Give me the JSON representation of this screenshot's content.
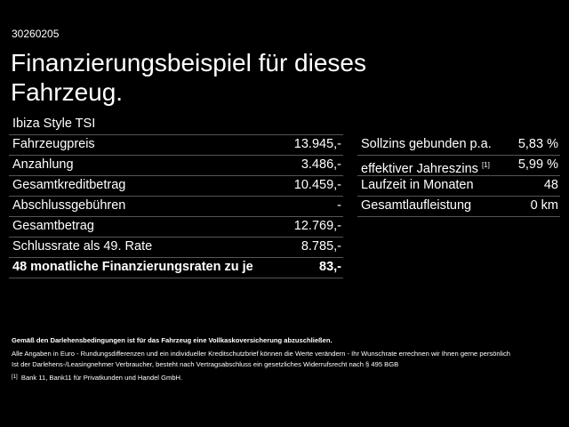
{
  "header": {
    "code": "30260205",
    "title_lines": [
      "Finanzierungsbeispiel für dieses",
      "Fahrzeug."
    ],
    "model": "Ibiza Style TSI"
  },
  "left_table": {
    "rows": [
      [
        "Fahrzeugpreis",
        "13.945,-"
      ],
      [
        "Anzahlung",
        "3.486,-"
      ],
      [
        "Gesamtkreditbetrag",
        "10.459,-"
      ],
      [
        "Abschlussgebühren",
        "-"
      ],
      [
        "Gesamtbetrag",
        "12.769,-"
      ],
      [
        "Schlussrate als 49. Rate",
        "8.785,-"
      ],
      [
        "48 monatliche Finanzierungsraten zu je",
        "83,-"
      ]
    ]
  },
  "right_table": {
    "rows": [
      [
        "Sollzins gebunden p.a.",
        "5,83 %"
      ],
      [
        "effektiver Jahreszins",
        "5,99 %"
      ],
      [
        "Laufzeit in Monaten",
        "48"
      ],
      [
        "Gesamtlaufleistung",
        "0 km"
      ]
    ],
    "footnote_mark": "[1]"
  },
  "footer": {
    "bold_note": "Gemäß den Darlehensbedingungen ist für das Fahrzeug eine Vollkaskoversicherung abzuschließen.",
    "lines": [
      "Alle Angaben in Euro - Rundungsdifferenzen und ein individueller Kreditschutzbrief können die Werte verändern - Ihr Wunschrate errechnen wir Ihnen gerne persönlich",
      "Ist der Darlehens-/Leasingnehmer Verbraucher, besteht nach Vertragsabschluss ein gesetzliches Widerrufsrecht nach § 495 BGB"
    ],
    "footnote_mark": "[1]",
    "footnote_text": "Bank 11, Bank11 für Privatkunden und Handel GmbH."
  }
}
